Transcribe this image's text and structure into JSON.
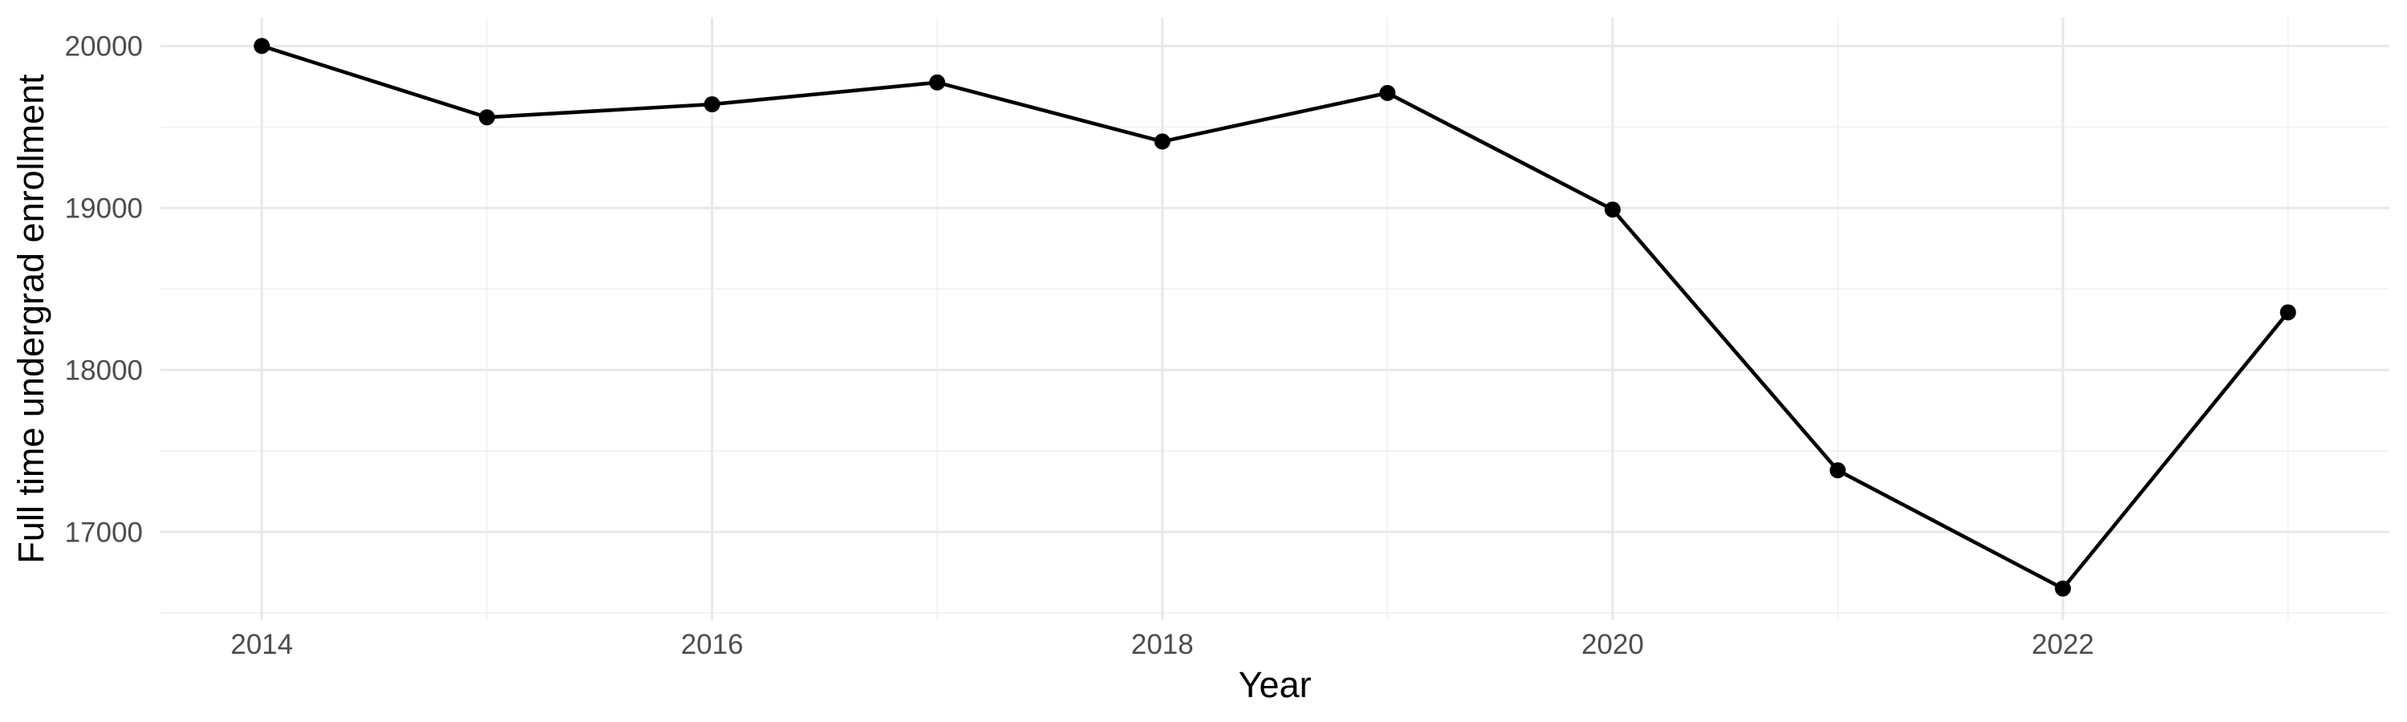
{
  "chart_data": {
    "type": "line",
    "title": "",
    "xlabel": "Year",
    "ylabel": "Full time undergrad enrollment",
    "x": [
      2014,
      2015,
      2016,
      2017,
      2018,
      2019,
      2020,
      2021,
      2022,
      2023
    ],
    "series": [
      {
        "name": "Full time undergrad enrollment",
        "values": [
          20000,
          19560,
          19640,
          19775,
          19410,
          19710,
          18990,
          17380,
          16650,
          18355
        ]
      }
    ],
    "xlim": [
      2013.55,
      2023.45
    ],
    "ylim": [
      16455,
      20175
    ],
    "xticks": {
      "values": [
        2014,
        2016,
        2018,
        2020,
        2022
      ],
      "labels": [
        "2014",
        "2016",
        "2018",
        "2020",
        "2022"
      ]
    },
    "yticks": {
      "values": [
        17000,
        18000,
        19000,
        20000
      ],
      "labels": [
        "17000",
        "18000",
        "19000",
        "20000"
      ]
    },
    "x_minor": [
      2015,
      2017,
      2019,
      2021,
      2023
    ],
    "y_minor": [
      16500,
      17500,
      18500,
      19500
    ],
    "grid": "major+minor",
    "legend": "none",
    "colors": {
      "line": "#000000",
      "point": "#000000",
      "grid_major": "#e8e8e8",
      "grid_minor": "#f1f1f1",
      "tick_text": "#4d4d4d",
      "axis_title": "#000000",
      "background": "#ffffff"
    }
  }
}
